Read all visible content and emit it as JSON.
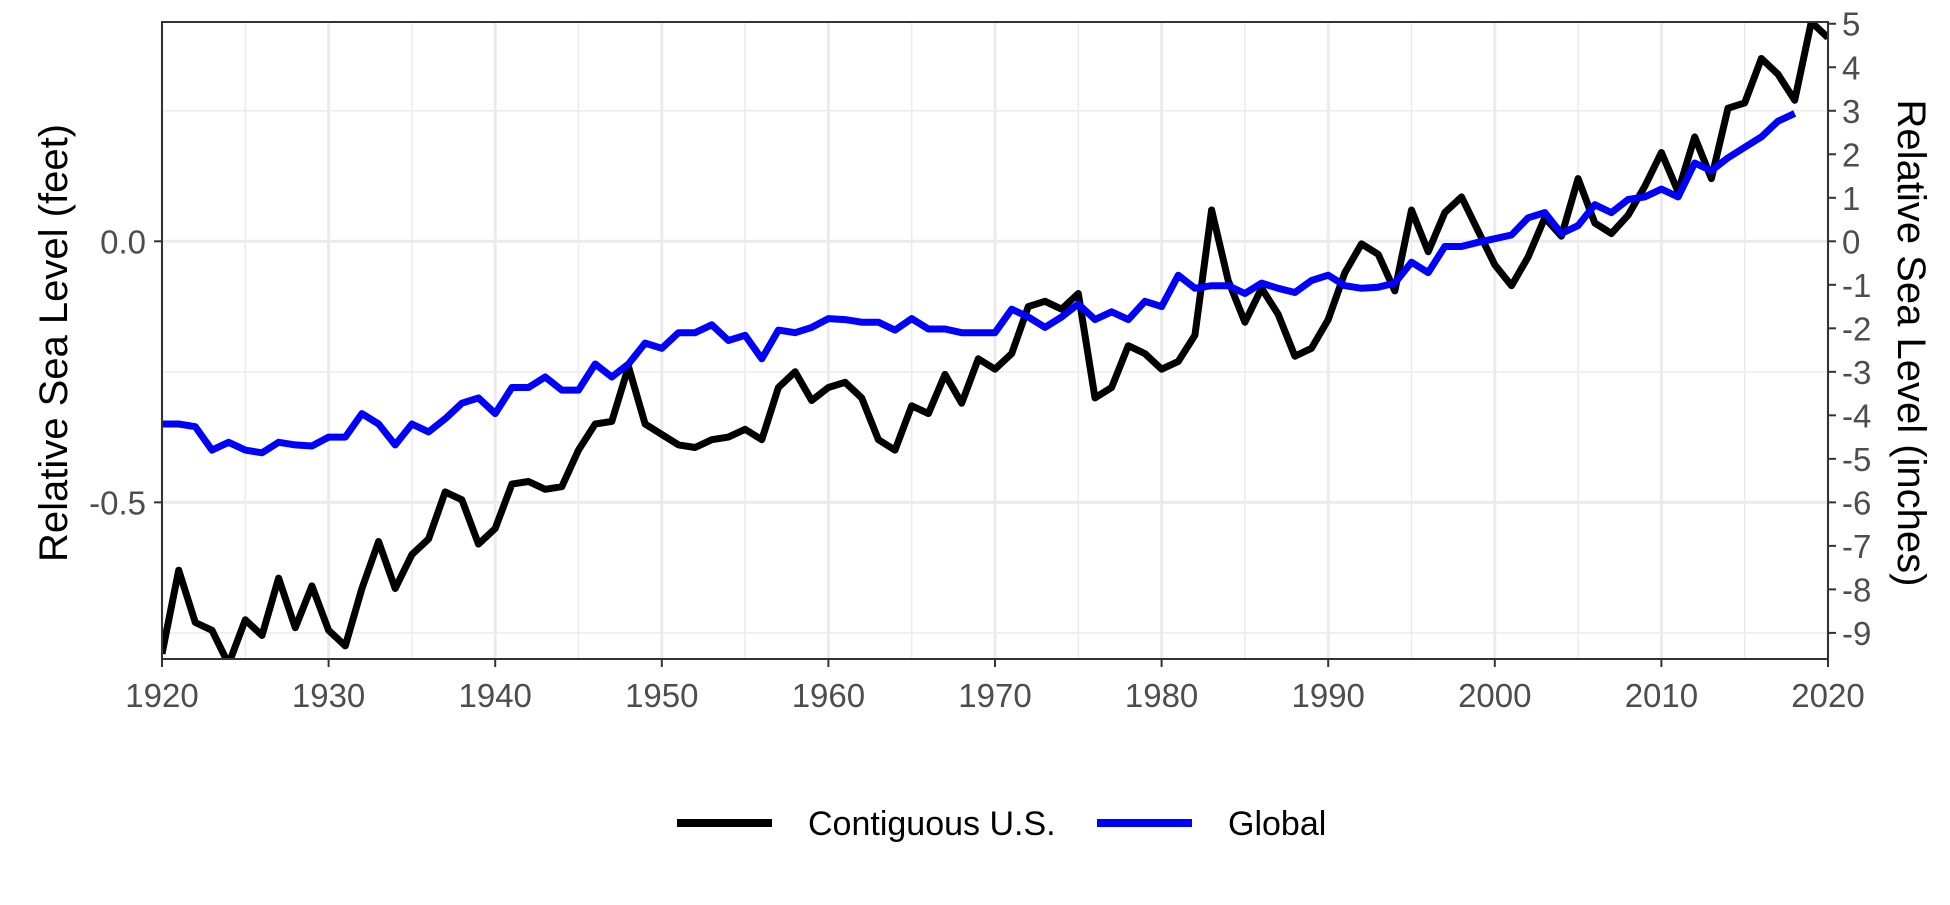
{
  "chart_data": {
    "type": "line",
    "title": "",
    "xlabel": "",
    "ylabel": "Relative Sea Level (feet)",
    "ylabel_right": "Relative Sea Level (inches)",
    "xlim": [
      1920,
      2020
    ],
    "ylim": [
      -0.8,
      0.42
    ],
    "ylim_right_inches": [
      -9.6,
      5.04
    ],
    "x_ticks": [
      1920,
      1930,
      1940,
      1950,
      1960,
      1970,
      1980,
      1990,
      2000,
      2010,
      2020
    ],
    "x_tick_labels": [
      "1920",
      "1930",
      "1940",
      "1950",
      "1960",
      "1970",
      "1980",
      "1990",
      "2000",
      "2010",
      "2020"
    ],
    "y_ticks_left": [
      0.0,
      -0.5
    ],
    "y_tick_labels_left": [
      "0.0",
      "-0.5"
    ],
    "y_ticks_right": [
      5,
      4,
      3,
      2,
      1,
      0,
      -1,
      -2,
      -3,
      -4,
      -5,
      -6,
      -7,
      -8,
      -9
    ],
    "y_tick_labels_right": [
      "5",
      "4",
      "3",
      "2",
      "1",
      "0",
      "-1",
      "-2",
      "-3",
      "-4",
      "-5",
      "-6",
      "-7",
      "-8",
      "-9"
    ],
    "grid": true,
    "legend_position": "bottom",
    "colors": {
      "contiguous_us": "#000000",
      "global": "#0000ff",
      "grid": "#ebebeb",
      "panel_border": "#333333",
      "tick_text": "#4d4d4d"
    },
    "series": [
      {
        "name": "Contiguous U.S.",
        "color": "#000000",
        "x": [
          1920,
          1921,
          1922,
          1923,
          1924,
          1925,
          1926,
          1927,
          1928,
          1929,
          1930,
          1931,
          1932,
          1933,
          1934,
          1935,
          1936,
          1937,
          1938,
          1939,
          1940,
          1941,
          1942,
          1943,
          1944,
          1945,
          1946,
          1947,
          1948,
          1949,
          1950,
          1951,
          1952,
          1953,
          1954,
          1955,
          1956,
          1957,
          1958,
          1959,
          1960,
          1961,
          1962,
          1963,
          1964,
          1965,
          1966,
          1967,
          1968,
          1969,
          1970,
          1971,
          1972,
          1973,
          1974,
          1975,
          1976,
          1977,
          1978,
          1979,
          1980,
          1981,
          1982,
          1983,
          1984,
          1985,
          1986,
          1987,
          1988,
          1989,
          1990,
          1991,
          1992,
          1993,
          1994,
          1995,
          1996,
          1997,
          1998,
          1999,
          2000,
          2001,
          2002,
          2003,
          2004,
          2005,
          2006,
          2007,
          2008,
          2009,
          2010,
          2011,
          2012,
          2013,
          2014,
          2015,
          2016,
          2017,
          2018,
          2019,
          2020
        ],
        "values": [
          -0.79,
          -0.63,
          -0.73,
          -0.745,
          -0.81,
          -0.725,
          -0.755,
          -0.645,
          -0.74,
          -0.66,
          -0.745,
          -0.775,
          -0.665,
          -0.575,
          -0.665,
          -0.6,
          -0.57,
          -0.48,
          -0.495,
          -0.58,
          -0.55,
          -0.465,
          -0.46,
          -0.475,
          -0.47,
          -0.4,
          -0.35,
          -0.345,
          -0.24,
          -0.35,
          -0.37,
          -0.39,
          -0.395,
          -0.38,
          -0.375,
          -0.36,
          -0.38,
          -0.28,
          -0.25,
          -0.305,
          -0.28,
          -0.27,
          -0.3,
          -0.38,
          -0.4,
          -0.315,
          -0.33,
          -0.255,
          -0.31,
          -0.225,
          -0.245,
          -0.215,
          -0.125,
          -0.115,
          -0.13,
          -0.1,
          -0.3,
          -0.28,
          -0.2,
          -0.215,
          -0.245,
          -0.23,
          -0.18,
          0.06,
          -0.075,
          -0.155,
          -0.09,
          -0.14,
          -0.22,
          -0.205,
          -0.15,
          -0.06,
          -0.005,
          -0.025,
          -0.095,
          0.06,
          -0.02,
          0.055,
          0.085,
          0.02,
          -0.045,
          -0.085,
          -0.03,
          0.045,
          0.01,
          0.12,
          0.035,
          0.015,
          0.05,
          0.105,
          0.17,
          0.095,
          0.2,
          0.12,
          0.255,
          0.265,
          0.35,
          0.32,
          0.27,
          0.42,
          0.39
        ]
      },
      {
        "name": "Global",
        "color": "#0000ff",
        "x": [
          1920,
          1921,
          1922,
          1923,
          1924,
          1925,
          1926,
          1927,
          1928,
          1929,
          1930,
          1931,
          1932,
          1933,
          1934,
          1935,
          1936,
          1937,
          1938,
          1939,
          1940,
          1941,
          1942,
          1943,
          1944,
          1945,
          1946,
          1947,
          1948,
          1949,
          1950,
          1951,
          1952,
          1953,
          1954,
          1955,
          1956,
          1957,
          1958,
          1959,
          1960,
          1961,
          1962,
          1963,
          1964,
          1965,
          1966,
          1967,
          1968,
          1969,
          1970,
          1971,
          1972,
          1973,
          1974,
          1975,
          1976,
          1977,
          1978,
          1979,
          1980,
          1981,
          1982,
          1983,
          1984,
          1985,
          1986,
          1987,
          1988,
          1989,
          1990,
          1991,
          1992,
          1993,
          1994,
          1995,
          1996,
          1997,
          1998,
          1999,
          2000,
          2001,
          2002,
          2003,
          2004,
          2005,
          2006,
          2007,
          2008,
          2009,
          2010,
          2011,
          2012,
          2013,
          2014,
          2015,
          2016,
          2017,
          2018
        ],
        "values": [
          -0.35,
          -0.35,
          -0.355,
          -0.4,
          -0.385,
          -0.4,
          -0.405,
          -0.385,
          -0.39,
          -0.392,
          -0.375,
          -0.375,
          -0.33,
          -0.35,
          -0.39,
          -0.35,
          -0.365,
          -0.34,
          -0.31,
          -0.3,
          -0.33,
          -0.28,
          -0.28,
          -0.26,
          -0.285,
          -0.285,
          -0.235,
          -0.26,
          -0.235,
          -0.195,
          -0.205,
          -0.175,
          -0.175,
          -0.16,
          -0.19,
          -0.18,
          -0.225,
          -0.17,
          -0.175,
          -0.165,
          -0.148,
          -0.15,
          -0.155,
          -0.155,
          -0.17,
          -0.148,
          -0.168,
          -0.168,
          -0.175,
          -0.175,
          -0.175,
          -0.13,
          -0.145,
          -0.165,
          -0.145,
          -0.12,
          -0.15,
          -0.135,
          -0.15,
          -0.115,
          -0.125,
          -0.065,
          -0.09,
          -0.085,
          -0.085,
          -0.1,
          -0.08,
          -0.09,
          -0.098,
          -0.075,
          -0.065,
          -0.085,
          -0.09,
          -0.088,
          -0.08,
          -0.04,
          -0.06,
          -0.01,
          -0.01,
          -0.002,
          0.005,
          0.012,
          0.045,
          0.055,
          0.015,
          0.03,
          0.07,
          0.055,
          0.08,
          0.085,
          0.1,
          0.085,
          0.15,
          0.135,
          0.16,
          0.18,
          0.2,
          0.23,
          0.245
        ]
      }
    ]
  }
}
